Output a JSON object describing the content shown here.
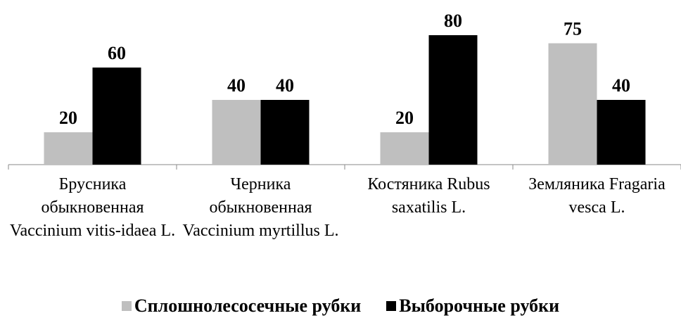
{
  "chart_data": {
    "type": "bar",
    "categories": [
      "Брусника обыкновенная Vaccinium vitis-idaea L.",
      "Черника обыкновенная Vaccinium myrtillus L.",
      "Костяника Rubus saxatilis L.",
      "Земляника Fragaria vesca L."
    ],
    "series": [
      {
        "name": "Сплошнолесосечные рубки",
        "color": "#bfbfbf",
        "values": [
          20,
          40,
          20,
          75
        ]
      },
      {
        "name": "Выборочные рубки",
        "color": "#000000",
        "values": [
          60,
          40,
          80,
          40
        ]
      }
    ],
    "ylim": [
      0,
      100
    ],
    "legend": "bottom"
  }
}
